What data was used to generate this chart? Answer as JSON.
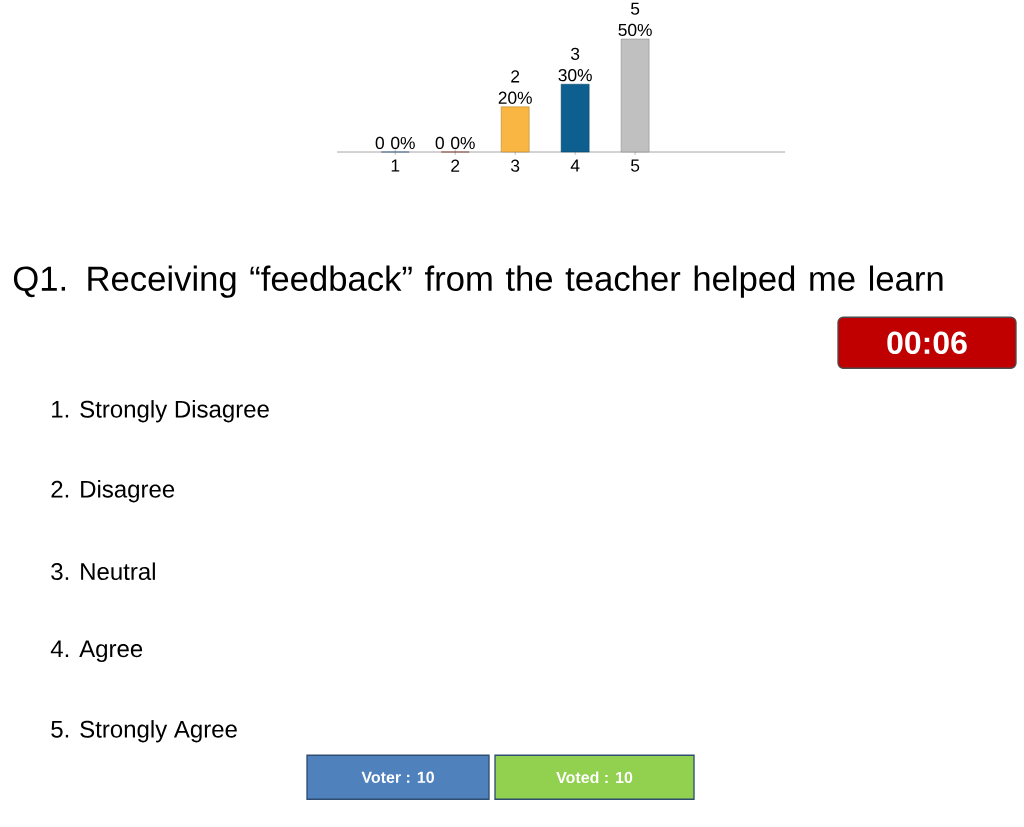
{
  "chart_data": {
    "type": "bar",
    "title": "Q1. Receiving “feedback” from the teacher helped me learn",
    "categories": [
      "1",
      "2",
      "3",
      "4",
      "5"
    ],
    "values": [
      0,
      0,
      2,
      3,
      5
    ],
    "colors": [
      "#4f81bd",
      "#c0504d",
      "#f9b642",
      "#0d5f8f",
      "#c0c0c0"
    ],
    "value_labels": [
      "0 0%",
      "0 0%",
      "2 20%",
      "3 30%",
      "5 50%"
    ],
    "annotations": [
      "1. Strongly Disagree",
      "2. Disagree",
      "3. Neutral",
      "4. Agree",
      "5. Strongly Agree",
      "00:06",
      "Voter : 10",
      "Voted : 10"
    ]
  }
}
